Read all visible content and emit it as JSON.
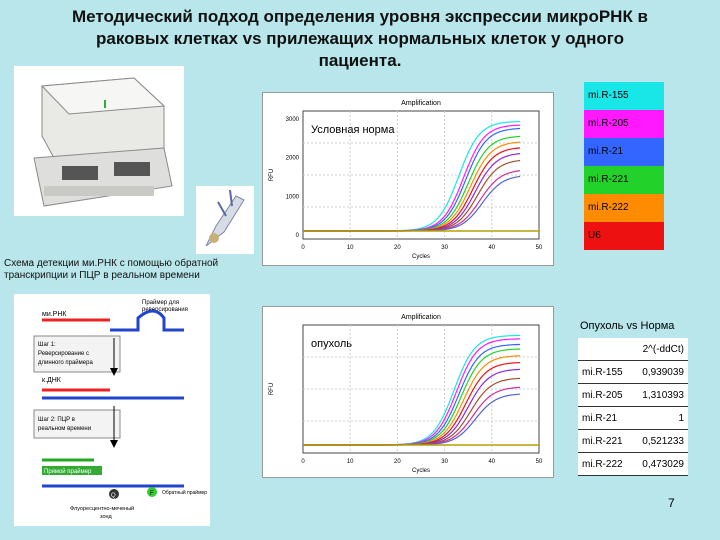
{
  "title": {
    "line1": "Методический подход определения уровня экспрессии микроРНК в",
    "line2": "раковых клетках vs прилежащих нормальных клеток у одного",
    "line3": "пациента."
  },
  "legend": [
    {
      "label": "mi.R-155",
      "color": "#19e6e6"
    },
    {
      "label": "mi.R-205",
      "color": "#ff19ff"
    },
    {
      "label": "mi.R-21",
      "color": "#3366ff"
    },
    {
      "label": "mi.R-221",
      "color": "#22d22a"
    },
    {
      "label": "mi.R-222",
      "color": "#ff8c00"
    },
    {
      "label": "U6",
      "color": "#ee1111"
    }
  ],
  "chart_top": {
    "title": "Amplification",
    "annotation": "Условная норма",
    "ylabel": "RFU",
    "xlabel": "Cycles",
    "yticks": [
      "3000",
      "2000",
      "1000",
      "0"
    ],
    "xticks": [
      "0",
      "10",
      "20",
      "30",
      "40",
      "50"
    ]
  },
  "chart_bottom": {
    "title": "Amplification",
    "annotation": "опухоль",
    "ylabel": "RFU",
    "xlabel": "Cycles",
    "xticks": [
      "0",
      "10",
      "20",
      "30",
      "40",
      "50"
    ]
  },
  "scheme_caption": {
    "line1": "Схема детекции ми.РНК с помощью обратной",
    "line2": "транскрипции и ПЦР в реальном времени"
  },
  "scheme": {
    "mirna_label": "ми.РНК",
    "primer_label": "Праймер для\nреверсирования",
    "step1": "Шаг 1:\nРеверсирование с\nдлинного праймера",
    "cdna_label": "к.ДНК",
    "step2": "Шаг 2: ПЦР в\nреальном времени",
    "forward_primer": "Прямой праймер",
    "reverse_primer": "Обратный праймер",
    "probe": "Флуоресцентно-меченый\nзонд",
    "q": "Q",
    "f": "F"
  },
  "results": {
    "heading": "Опухоль vs Норма",
    "column": "2^(-ddCt)",
    "rows": [
      {
        "name": "mi.R-155",
        "value": "0,939039"
      },
      {
        "name": "mi.R-205",
        "value": "1,310393"
      },
      {
        "name": "mi.R-21",
        "value": "1"
      },
      {
        "name": "mi.R-221",
        "value": "0,521233"
      },
      {
        "name": "mi.R-222",
        "value": "0,473029"
      }
    ]
  },
  "page_number": "7"
}
